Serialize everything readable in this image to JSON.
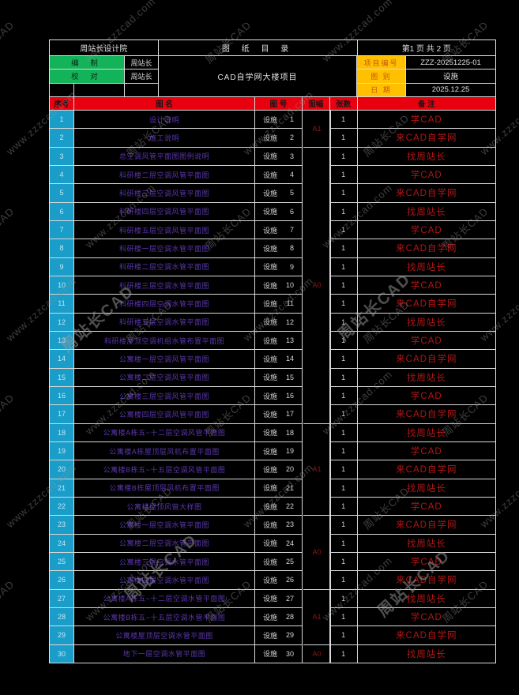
{
  "header": {
    "institute": "周站长设计院",
    "title": "图 纸 目 录",
    "page_info": "第1 页 共 2 页",
    "prepared_label": "编 制",
    "prepared_by": "周站长",
    "checked_label": "校 对",
    "checked_by": "周站长",
    "project_name": "CAD自学网大楼项目",
    "project_no_label": "项目编号",
    "project_no": "ZZZ-20251225-01",
    "category_label": "图 别",
    "category": "设施",
    "date_label": "日 期",
    "date": "2025.12.25"
  },
  "columns": {
    "no": "序号",
    "name": "图  名",
    "number": "图  号",
    "size": "图幅",
    "sheets": "张数",
    "remarks": "备  注",
    "number_prefix": "设施"
  },
  "rows": [
    {
      "no": 1,
      "name": "设计说明",
      "number": 1,
      "sheets": "1",
      "remark": "学CAD"
    },
    {
      "no": 2,
      "name": "施工说明",
      "number": 2,
      "sheets": "1",
      "remark": "来CAD自学网"
    },
    {
      "no": 3,
      "name": "总空调风管平面图图例说明",
      "number": 3,
      "sheets": "1",
      "remark": "找周站长"
    },
    {
      "no": 4,
      "name": "科研楼二层空调风管平面图",
      "number": 4,
      "sheets": "1",
      "remark": "学CAD"
    },
    {
      "no": 5,
      "name": "科研楼三层空调风管平面图",
      "number": 5,
      "sheets": "1",
      "remark": "来CAD自学网"
    },
    {
      "no": 6,
      "name": "科研楼四层空调风管平面图",
      "number": 6,
      "sheets": "1",
      "remark": "找周站长"
    },
    {
      "no": 7,
      "name": "科研楼五层空调风管平面图",
      "number": 7,
      "sheets": "1",
      "remark": "学CAD"
    },
    {
      "no": 8,
      "name": "科研楼一层空调水管平面图",
      "number": 8,
      "sheets": "1",
      "remark": "来CAD自学网"
    },
    {
      "no": 9,
      "name": "科研楼二层空调水管平面图",
      "number": 9,
      "sheets": "1",
      "remark": "找周站长"
    },
    {
      "no": 10,
      "name": "科研楼三层空调水管平面图",
      "number": 10,
      "sheets": "1",
      "remark": "学CAD"
    },
    {
      "no": 11,
      "name": "科研楼四层空调水管平面图",
      "number": 11,
      "sheets": "1",
      "remark": "来CAD自学网"
    },
    {
      "no": 12,
      "name": "科研楼五层空调水管平面图",
      "number": 12,
      "sheets": "1",
      "remark": "找周站长"
    },
    {
      "no": 13,
      "name": "科研楼屋顶空调机组水管布置平面图",
      "number": 13,
      "sheets": "1",
      "remark": "学CAD"
    },
    {
      "no": 14,
      "name": "公寓楼一层空调风管平面图",
      "number": 14,
      "sheets": "1",
      "remark": "来CAD自学网"
    },
    {
      "no": 15,
      "name": "公寓楼二层空调风管平面图",
      "number": 15,
      "sheets": "1",
      "remark": "找周站长"
    },
    {
      "no": 16,
      "name": "公寓楼三层空调风管平面图",
      "number": 16,
      "sheets": "1",
      "remark": "学CAD"
    },
    {
      "no": 17,
      "name": "公寓楼四层空调风管平面图",
      "number": 17,
      "sheets": "1",
      "remark": "来CAD自学网"
    },
    {
      "no": 18,
      "name": "公寓楼A栋五~十二层空调风管平面图",
      "number": 18,
      "sheets": "1",
      "remark": "找周站长"
    },
    {
      "no": 19,
      "name": "公寓楼A栋屋顶层风机布置平面图",
      "number": 19,
      "sheets": "1",
      "remark": "学CAD"
    },
    {
      "no": 20,
      "name": "公寓楼B栋五~十五层空调风管平面图",
      "number": 20,
      "sheets": "1",
      "remark": "来CAD自学网"
    },
    {
      "no": 21,
      "name": "公寓楼B栋屋顶层风机布置平面图",
      "number": 21,
      "sheets": "1",
      "remark": "找周站长"
    },
    {
      "no": 22,
      "name": "公寓楼屋顶风管大样图",
      "number": 22,
      "sheets": "1",
      "remark": "学CAD"
    },
    {
      "no": 23,
      "name": "公寓楼一层空调水管平面图",
      "number": 23,
      "sheets": "1",
      "remark": "来CAD自学网"
    },
    {
      "no": 24,
      "name": "公寓楼二层空调水管平面图",
      "number": 24,
      "sheets": "1",
      "remark": "找周站长"
    },
    {
      "no": 25,
      "name": "公寓楼三层空调水管平面图",
      "number": 25,
      "sheets": "1",
      "remark": "学CAD"
    },
    {
      "no": 26,
      "name": "公寓楼四层空调水管平面图",
      "number": 26,
      "sheets": "1",
      "remark": "来CAD自学网"
    },
    {
      "no": 27,
      "name": "公寓楼A栋五~十二层空调水管平面图",
      "number": 27,
      "sheets": "1",
      "remark": "找周站长"
    },
    {
      "no": 28,
      "name": "公寓楼B栋五~十五层空调水管平面图",
      "number": 28,
      "sheets": "1",
      "remark": "学CAD"
    },
    {
      "no": 29,
      "name": "公寓楼屋顶层空调水管平面图",
      "number": 29,
      "sheets": "1",
      "remark": "来CAD自学网"
    },
    {
      "no": 30,
      "name": "地下一层空调水管平面图",
      "number": 30,
      "sheets": "1",
      "remark": "找周站长"
    }
  ],
  "size_groups": [
    {
      "label": "A1",
      "span": 2
    },
    {
      "label": "A0",
      "span": 15
    },
    {
      "label": "A1",
      "span": 5
    },
    {
      "label": "A0",
      "span": 4
    },
    {
      "label": "A1",
      "span": 3
    },
    {
      "label": "A0",
      "span": 1
    }
  ],
  "watermark": {
    "texts": [
      "周站长CAD",
      "www.zzzcad.com"
    ]
  },
  "colors": {
    "cyan": "#1a9dc8",
    "red_header": "#e8000f",
    "green": "#13b359",
    "orange": "#ffc000",
    "name_purple": "#5a36ad",
    "remark_red": "#b21616",
    "size_red": "#8f1616"
  }
}
